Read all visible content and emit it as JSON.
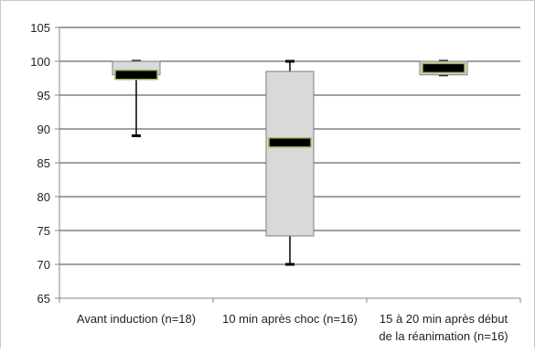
{
  "chart_data": {
    "type": "boxplot",
    "title": "",
    "xlabel": "",
    "ylabel": "",
    "ylim": [
      65,
      105
    ],
    "yticks": [
      65,
      70,
      75,
      80,
      85,
      90,
      95,
      100,
      105
    ],
    "grid": true,
    "legend": "none",
    "categories": [
      [
        "Avant induction (n=18)"
      ],
      [
        "10 min après choc (n=16)"
      ],
      [
        "15 à 20 min après début",
        "de la réanimation (n=16)"
      ]
    ],
    "boxes": [
      {
        "min": 89,
        "q1": 98,
        "median": 98,
        "q3": 100,
        "max": 100
      },
      {
        "min": 70,
        "q1": 74.2,
        "median": 88,
        "q3": 98.5,
        "max": 100
      },
      {
        "min": 98,
        "q1": 98,
        "median": 99,
        "q3": 100,
        "max": 100
      }
    ],
    "colors": {
      "box_fill": "#d9d9d9",
      "box_stroke": "#7f7f7f",
      "median": "#000000",
      "median_outline": "#9bbb59",
      "whisker": "#000000",
      "grid": "#000000",
      "axis": "#868686"
    }
  }
}
